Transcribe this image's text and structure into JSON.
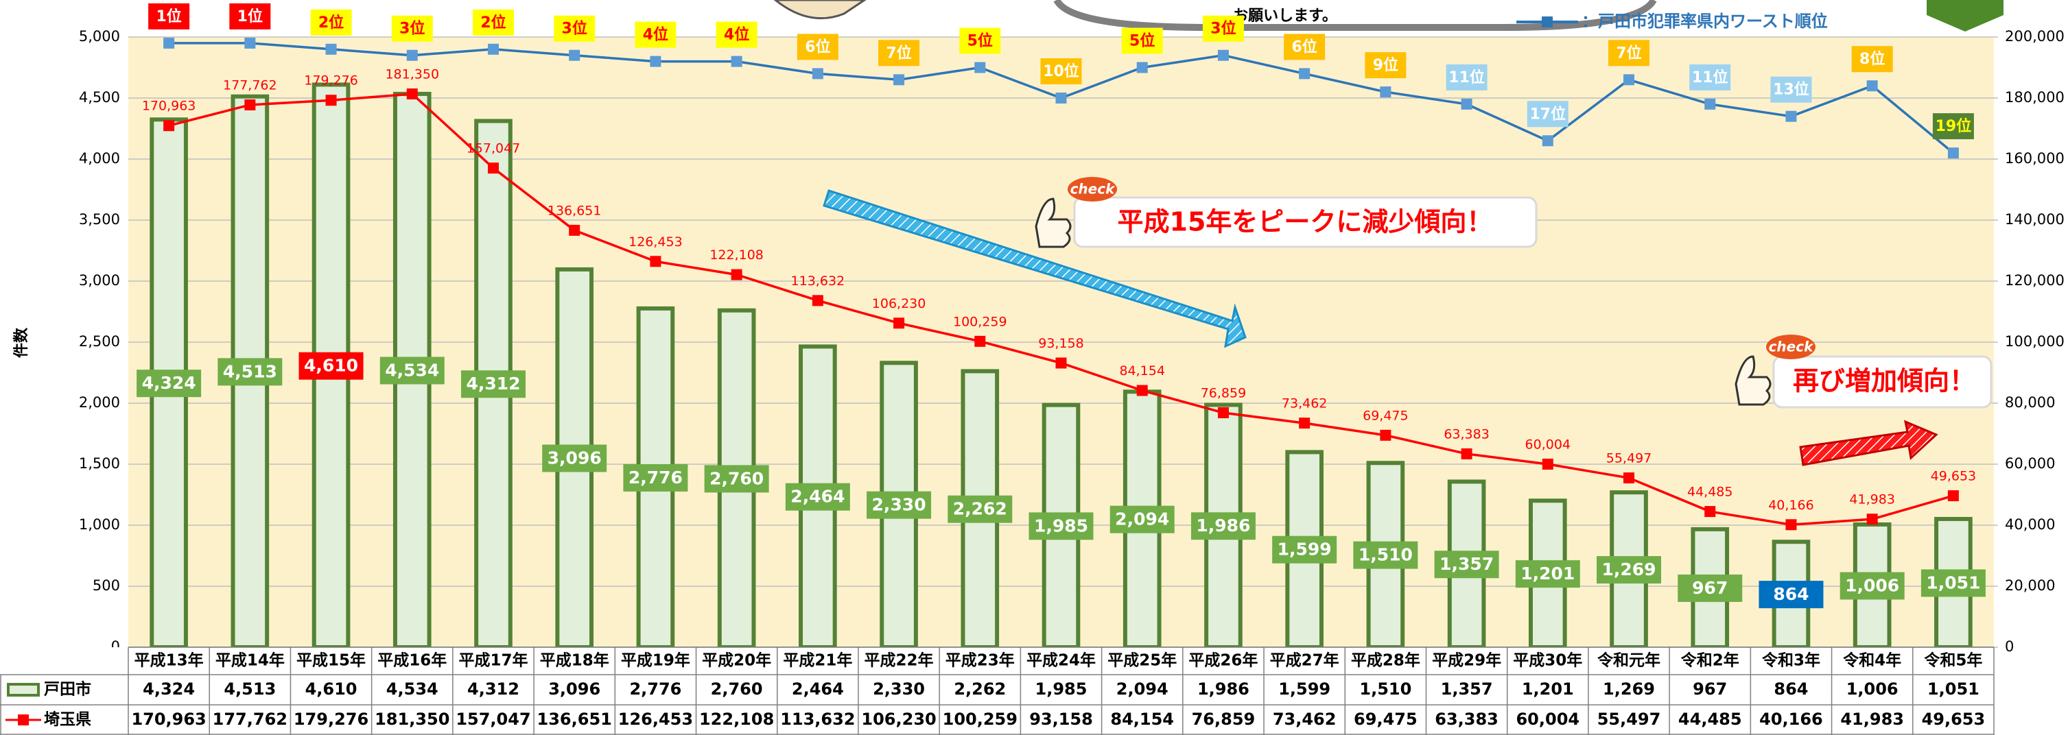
{
  "chart_data": {
    "type": "bar",
    "y_axis_title": "件数",
    "categories": [
      "平成13年",
      "平成14年",
      "平成15年",
      "平成16年",
      "平成17年",
      "平成18年",
      "平成19年",
      "平成20年",
      "平成21年",
      "平成22年",
      "平成23年",
      "平成24年",
      "平成25年",
      "平成26年",
      "平成27年",
      "平成28年",
      "平成29年",
      "平成30年",
      "令和元年",
      "令和2年",
      "令和3年",
      "令和4年",
      "令和5年"
    ],
    "series": [
      {
        "name": "戸田市",
        "type": "bar",
        "axis": "y",
        "color": "#e2efda",
        "edge_color": "#548235",
        "values": [
          4324,
          4513,
          4610,
          4534,
          4312,
          3096,
          2776,
          2760,
          2464,
          2330,
          2262,
          1985,
          2094,
          1986,
          1599,
          1510,
          1357,
          1201,
          1269,
          967,
          864,
          1006,
          1051
        ],
        "value_labels": [
          "4,324",
          "4,513",
          "4,610",
          "4,534",
          "4,312",
          "3,096",
          "2,776",
          "2,760",
          "2,464",
          "2,330",
          "2,262",
          "1,985",
          "2,094",
          "1,986",
          "1,599",
          "1,510",
          "1,357",
          "1,201",
          "1,269",
          "967",
          "864",
          "1,006",
          "1,051"
        ],
        "label_box_colors": [
          "#70ad47",
          "#70ad47",
          "#ff0000",
          "#70ad47",
          "#70ad47",
          "#70ad47",
          "#70ad47",
          "#70ad47",
          "#70ad47",
          "#70ad47",
          "#70ad47",
          "#70ad47",
          "#70ad47",
          "#70ad47",
          "#70ad47",
          "#70ad47",
          "#70ad47",
          "#70ad47",
          "#70ad47",
          "#70ad47",
          "#0070c0",
          "#70ad47",
          "#70ad47"
        ]
      },
      {
        "name": "埼玉県",
        "type": "line",
        "axis": "y2",
        "color": "#ff0000",
        "values": [
          170963,
          177762,
          179276,
          181350,
          157047,
          136651,
          126453,
          122108,
          113632,
          106230,
          100259,
          93158,
          84154,
          76859,
          73462,
          69475,
          63383,
          60004,
          55497,
          44485,
          40166,
          41983,
          49653
        ],
        "value_labels": [
          "170,963",
          "177,762",
          "179,276",
          "181,350",
          "157,047",
          "136,651",
          "126,453",
          "122,108",
          "113,632",
          "106,230",
          "100,259",
          "93,158",
          "84,154",
          "76,859",
          "73,462",
          "69,475",
          "63,383",
          "60,004",
          "55,497",
          "44,485",
          "40,166",
          "41,983",
          "49,653"
        ]
      },
      {
        "name": "：戸田市犯罪率県内ワースト順位",
        "type": "line",
        "axis": "y3",
        "color": "#2e75b6",
        "marker_color": "#5b9bd5",
        "values": [
          1,
          1,
          2,
          3,
          2,
          3,
          4,
          4,
          6,
          7,
          5,
          10,
          5,
          3,
          6,
          9,
          11,
          17,
          7,
          11,
          13,
          8,
          19
        ],
        "value_labels": [
          "1位",
          "1位",
          "2位",
          "3位",
          "2位",
          "3位",
          "4位",
          "4位",
          "6位",
          "7位",
          "5位",
          "10位",
          "5位",
          "3位",
          "6位",
          "9位",
          "11位",
          "17位",
          "7位",
          "11位",
          "13位",
          "8位",
          "19位"
        ],
        "label_box_colors": [
          "#ff0000",
          "#ff0000",
          "#ffff00",
          "#ffff00",
          "#ffff00",
          "#ffff00",
          "#ffff00",
          "#ffff00",
          "#ffc000",
          "#ffc000",
          "#ffff00",
          "#ffc000",
          "#ffff00",
          "#ffff00",
          "#ffc000",
          "#ffc000",
          "#9dd3f0",
          "#9dd3f0",
          "#ffc000",
          "#9dd3f0",
          "#9dd3f0",
          "#ffc000",
          "#548235"
        ],
        "label_text_colors": [
          "#ffffff",
          "#ffffff",
          "#ff0000",
          "#ff0000",
          "#ff0000",
          "#ff0000",
          "#ff0000",
          "#ff0000",
          "#ffffff",
          "#ffffff",
          "#ff0000",
          "#ffffff",
          "#ff0000",
          "#ff0000",
          "#ffffff",
          "#ffffff",
          "#ffffff",
          "#ffffff",
          "#ffffff",
          "#ffffff",
          "#ffffff",
          "#ffffff",
          "#ffff00"
        ]
      }
    ],
    "ylim": [
      0,
      5000
    ],
    "yticks": [
      0,
      500,
      {
        "value": 1000,
        "label": "1,000"
      },
      {
        "value": 1500,
        "label": "1,500"
      },
      {
        "value": 2000,
        "label": "2,000"
      },
      {
        "value": 2500,
        "label": "2,500"
      },
      {
        "value": 3000,
        "label": "3,000"
      },
      {
        "value": 3500,
        "label": "3,500"
      },
      {
        "value": 4000,
        "label": "4,000"
      },
      {
        "value": 4500,
        "label": "4,500"
      },
      {
        "value": 5000,
        "label": "5,000"
      }
    ],
    "y2lim": [
      0,
      200000
    ],
    "y2ticks": [
      0,
      {
        "value": 20000,
        "label": "20,000"
      },
      {
        "value": 40000,
        "label": "40,000"
      },
      {
        "value": 60000,
        "label": "60,000"
      },
      {
        "value": 80000,
        "label": "80,000"
      },
      {
        "value": 100000,
        "label": "100,000"
      },
      {
        "value": 120000,
        "label": "120,000"
      },
      {
        "value": 140000,
        "label": "140,000"
      },
      {
        "value": 160000,
        "label": "160,000"
      },
      {
        "value": 180000,
        "label": "180,000"
      },
      {
        "value": 200000,
        "label": "200,000"
      }
    ],
    "y3lim": [
      0,
      100
    ],
    "y3_inverted": true,
    "grid": true,
    "plot_background": "#fdf1cc",
    "annotations": {
      "top_note": "お願いします。",
      "decrease": "平成15年をピークに減少傾向！",
      "increase": "再び増加傾向！",
      "check_1": "check",
      "check_2": "check"
    }
  }
}
